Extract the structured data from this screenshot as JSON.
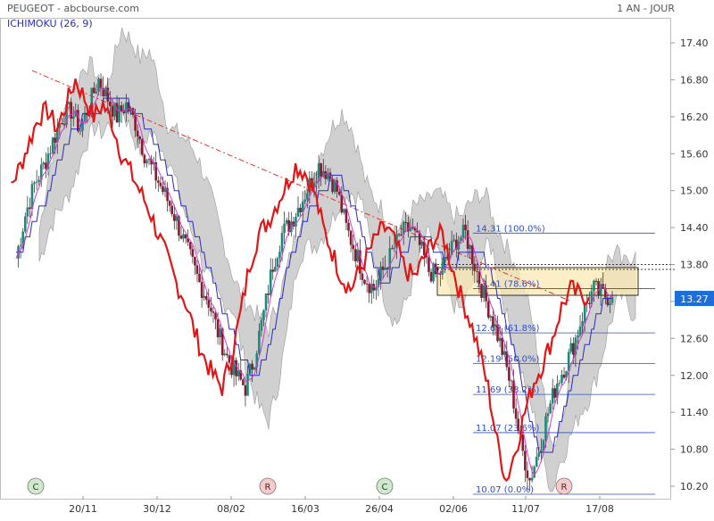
{
  "header": {
    "source_label": "PEUGEOT - abcbourse.com",
    "period_label": "1 AN - JOUR",
    "indicator_label": "ICHIMOKU (26, 9)"
  },
  "colors": {
    "price_badge": "#1d6ed8",
    "tenkan": "#2b2bbf",
    "kijun": "#d43ad4",
    "chikou": "#e01515",
    "cloud": "#c8c8c8",
    "candle_up": "#1a8a7a",
    "candle_down": "#8b1a2e",
    "fib_line": "#2c4fc7",
    "fib_text": "#2c4fc7",
    "trendline": "#e53030",
    "zone_fill": "#fbe9b5",
    "marker_fill": "#f7c9c9",
    "marker_green": "#cdeacb"
  },
  "chart_data": {
    "type": "candlestick",
    "title": "PEUGEOT - abcbourse.com",
    "subtitle": "1 AN - JOUR",
    "indicator": "ICHIMOKU (26, 9)",
    "ylim": [
      10.2,
      17.4
    ],
    "y_ticks": [
      "17.40",
      "16.80",
      "16.20",
      "15.60",
      "15.00",
      "14.40",
      "13.80",
      "13.20",
      "12.60",
      "12.00",
      "11.40",
      "10.80",
      "10.20"
    ],
    "x_ticks": [
      "20/11",
      "30/12",
      "08/02",
      "16/03",
      "26/04",
      "02/06",
      "11/07",
      "17/08"
    ],
    "last_price": "13.27",
    "fibonacci": [
      {
        "label": "14.31  (100.0%)",
        "value": 14.31
      },
      {
        "label": "13.41  (78.6%)",
        "value": 13.41
      },
      {
        "label": "12.69  (61.8%)",
        "value": 12.69
      },
      {
        "label": "12.19  (50.0%)",
        "value": 12.19
      },
      {
        "label": "11.69  (38.2%)",
        "value": 11.69
      },
      {
        "label": "11.07  (23.6%)",
        "value": 11.07
      },
      {
        "label": "10.07  (0.0%)",
        "value": 10.07
      }
    ],
    "close_approx": [
      13.9,
      14.6,
      15.1,
      15.4,
      15.8,
      16.2,
      16.3,
      16.0,
      16.4,
      16.8,
      16.5,
      16.2,
      16.4,
      16.1,
      15.6,
      15.3,
      15.0,
      14.7,
      14.3,
      13.9,
      13.5,
      13.2,
      12.7,
      12.3,
      12.0,
      11.8,
      12.3,
      13.0,
      13.8,
      14.3,
      14.5,
      14.8,
      15.1,
      15.4,
      15.3,
      15.0,
      14.4,
      14.0,
      13.6,
      13.4,
      13.7,
      14.0,
      14.3,
      14.4,
      14.1,
      13.7,
      13.6,
      13.9,
      14.2,
      14.3,
      13.8,
      13.3,
      12.9,
      12.4,
      11.8,
      10.9,
      10.3,
      10.8,
      11.4,
      11.9,
      12.2,
      12.6,
      13.1,
      13.4,
      13.3,
      13.27
    ]
  },
  "signals": [
    {
      "label": "C",
      "kind": "cross"
    },
    {
      "label": "R",
      "kind": "reversal"
    },
    {
      "label": "C",
      "kind": "cross"
    },
    {
      "label": "R",
      "kind": "reversal"
    }
  ]
}
